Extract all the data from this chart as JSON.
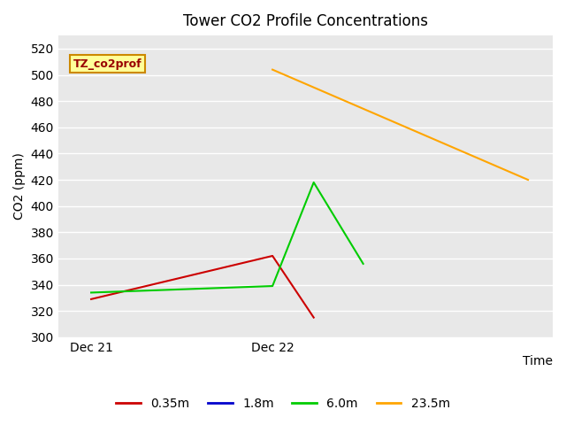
{
  "title": "Tower CO2 Profile Concentrations",
  "ylabel": "CO2 (ppm)",
  "xlabel": "Time",
  "ylim": [
    300,
    530
  ],
  "yticks": [
    300,
    320,
    340,
    360,
    380,
    400,
    420,
    440,
    460,
    480,
    500,
    520
  ],
  "xlim": [
    0,
    3.0
  ],
  "xtick_positions": [
    0.2,
    1.3
  ],
  "xtick_labels": [
    "Dec 21",
    "Dec 22"
  ],
  "fig_bg_color": "#ffffff",
  "plot_bg_color": "#e8e8e8",
  "grid_color": "#ffffff",
  "series": {
    "0.35m": {
      "color": "#cc0000",
      "x": [
        0.2,
        1.3,
        1.55
      ],
      "y": [
        329,
        362,
        315
      ]
    },
    "1.8m": {
      "color": "#0000cc",
      "x": [],
      "y": []
    },
    "6.0m": {
      "color": "#00cc00",
      "x": [
        0.2,
        1.3,
        1.55,
        1.85
      ],
      "y": [
        334,
        339,
        418,
        356
      ]
    },
    "23.5m": {
      "color": "#ffa500",
      "x": [
        1.3,
        2.85
      ],
      "y": [
        504,
        420
      ]
    }
  },
  "legend_label": "TZ_co2prof",
  "legend_bg": "#ffff99",
  "legend_text_color": "#990000",
  "legend_border_color": "#cc8800"
}
